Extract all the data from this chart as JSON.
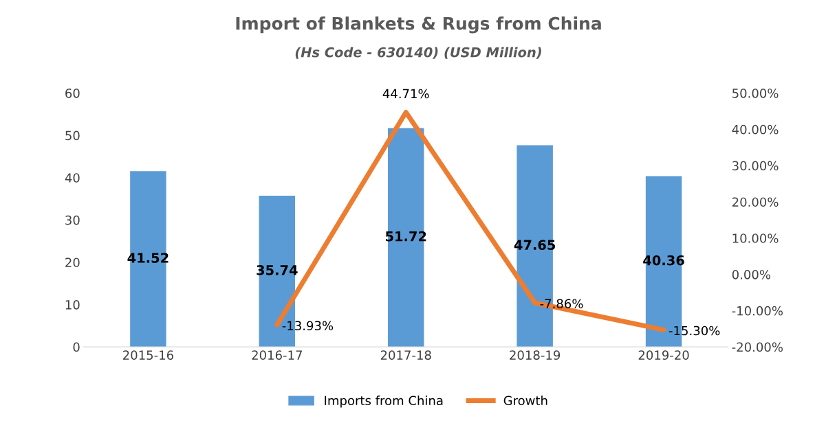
{
  "chart_data": {
    "type": "bar",
    "title": "Import of Blankets & Rugs from China",
    "subtitle": "(Hs Code - 630140) (USD Million)",
    "categories": [
      "2015-16",
      "2016-17",
      "2017-18",
      "2018-19",
      "2019-20"
    ],
    "series": [
      {
        "name": "Imports from China",
        "color": "#5b9bd5",
        "values": [
          41.52,
          35.74,
          51.72,
          47.65,
          40.36
        ],
        "value_labels": [
          "41.52",
          "35.74",
          "51.72",
          "47.65",
          "40.36"
        ]
      },
      {
        "name": "Growth",
        "type": "line",
        "axis": "y2",
        "color": "#ed7d31",
        "values": [
          null,
          -13.93,
          44.71,
          -7.86,
          -15.3
        ],
        "value_labels": [
          null,
          "-13.93%",
          "44.71%",
          "-7.86%",
          "-15.30%"
        ]
      }
    ],
    "ylim": [
      0,
      60
    ],
    "yticks": [
      0,
      10,
      20,
      30,
      40,
      50,
      60
    ],
    "y2lim": [
      -20,
      50
    ],
    "y2ticks": [
      {
        "value": -20,
        "label": "-20.00%"
      },
      {
        "value": -10,
        "label": "-10.00%"
      },
      {
        "value": 0,
        "label": "0.00%"
      },
      {
        "value": 10,
        "label": "10.00%"
      },
      {
        "value": 20,
        "label": "20.00%"
      },
      {
        "value": 30,
        "label": "30.00%"
      },
      {
        "value": 40,
        "label": "40.00%"
      },
      {
        "value": 50,
        "label": "50.00%"
      }
    ],
    "grid": false,
    "legend": "bottom",
    "marker": "none",
    "line_style": "solid"
  }
}
